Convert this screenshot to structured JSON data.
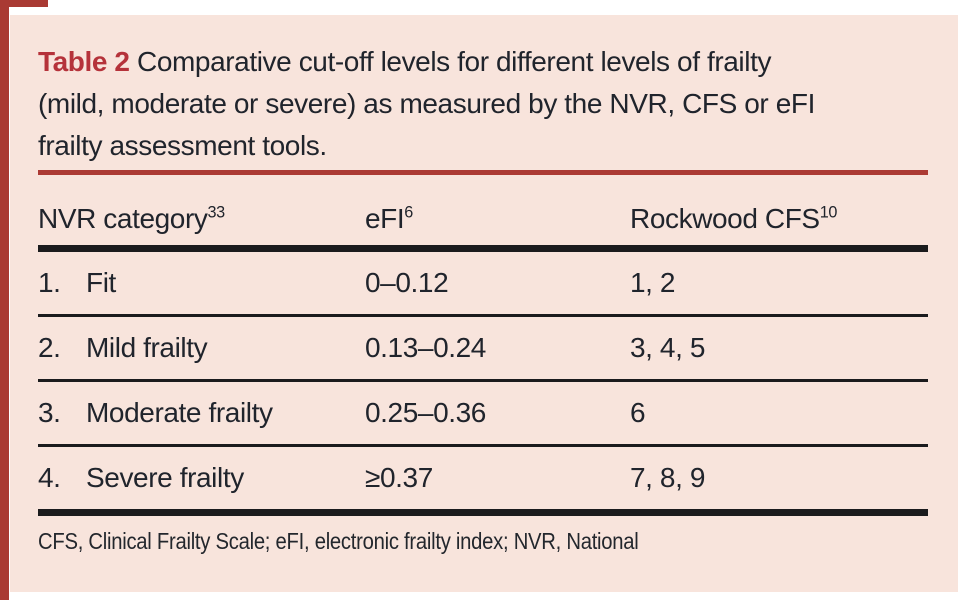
{
  "colors": {
    "accent_red": "#a93a33",
    "title_red": "#b5323a",
    "rule_red": "#ac3a34",
    "panel_pink": "#f8e4dc",
    "text_dark": "#20242c",
    "line_black": "#1b1b1d"
  },
  "title": {
    "label": "Table 2",
    "lines": [
      "Comparative cut-off levels for different levels of frailty",
      "(mild, moderate or severe) as measured by the NVR, CFS or eFI",
      "frailty assessment tools."
    ]
  },
  "table": {
    "columns": [
      {
        "label": "NVR category",
        "sup": "33"
      },
      {
        "label": "eFI",
        "sup": "6"
      },
      {
        "label": "Rockwood CFS",
        "sup": "10"
      }
    ],
    "rows": [
      {
        "num": "1.",
        "category": "Fit",
        "efi": "0–0.12",
        "cfs": "1, 2"
      },
      {
        "num": "2.",
        "category": "Mild frailty",
        "efi": "0.13–0.24",
        "cfs": "3, 4, 5"
      },
      {
        "num": "3.",
        "category": "Moderate frailty",
        "efi": "0.25–0.36",
        "cfs": "6"
      },
      {
        "num": "4.",
        "category": "Severe frailty",
        "efi": "≥0.37",
        "cfs": "7, 8, 9"
      }
    ]
  },
  "footnote": "CFS, Clinical Frailty Scale; eFI, electronic frailty index; NVR, National"
}
